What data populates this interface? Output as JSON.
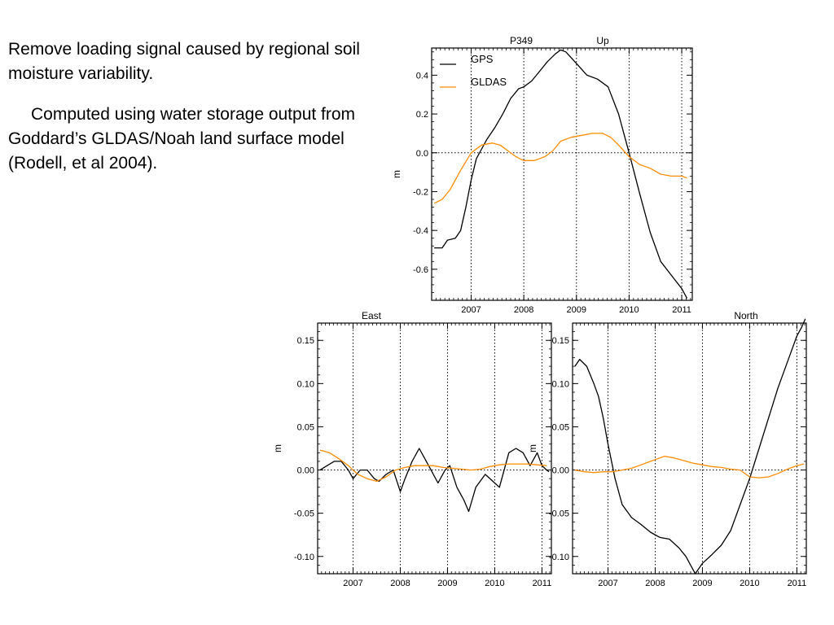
{
  "text": {
    "paragraph1": "Remove loading signal caused by regional soil moisture variability.",
    "paragraph2": "Computed using water storage output from Goddard’s GLDAS/Noah land surface model (Rodell, et al 2004)."
  },
  "colors": {
    "gps": "#000000",
    "gldas": "#ff8c00"
  },
  "chart_data": [
    {
      "type": "line",
      "station": "P349",
      "title": "Up",
      "ylabel": "m",
      "xlim": [
        2006.25,
        2011.2
      ],
      "ylim": [
        -0.76,
        0.54
      ],
      "x_ticks": [
        2007,
        2008,
        2009,
        2010,
        2011
      ],
      "y_ticks": [
        -0.6,
        -0.4,
        -0.2,
        0.0,
        0.2,
        0.4
      ],
      "y_tick_labels": [
        "-0.6",
        "-0.4",
        "-0.2",
        "0.0",
        "0.2",
        "0.4"
      ],
      "legend": [
        "GPS",
        "GLDAS"
      ],
      "legend_position": "top-left",
      "series": [
        {
          "name": "GPS",
          "x": [
            2006.3,
            2006.45,
            2006.55,
            2006.7,
            2006.8,
            2006.9,
            2007.0,
            2007.1,
            2007.2,
            2007.3,
            2007.45,
            2007.6,
            2007.75,
            2007.9,
            2008.0,
            2008.15,
            2008.3,
            2008.45,
            2008.6,
            2008.7,
            2008.8,
            2008.9,
            2009.0,
            2009.2,
            2009.4,
            2009.6,
            2009.8,
            2010.0,
            2010.2,
            2010.4,
            2010.6,
            2010.8,
            2011.0,
            2011.1
          ],
          "y": [
            -0.49,
            -0.49,
            -0.45,
            -0.44,
            -0.4,
            -0.28,
            -0.14,
            -0.03,
            0.02,
            0.07,
            0.13,
            0.2,
            0.28,
            0.33,
            0.34,
            0.37,
            0.42,
            0.47,
            0.51,
            0.53,
            0.52,
            0.49,
            0.46,
            0.4,
            0.38,
            0.34,
            0.2,
            0.0,
            -0.21,
            -0.41,
            -0.56,
            -0.63,
            -0.7,
            -0.75
          ]
        },
        {
          "name": "GLDAS",
          "x": [
            2006.3,
            2006.45,
            2006.6,
            2006.8,
            2007.0,
            2007.2,
            2007.4,
            2007.55,
            2007.7,
            2007.85,
            2008.0,
            2008.2,
            2008.4,
            2008.55,
            2008.7,
            2008.9,
            2009.1,
            2009.3,
            2009.5,
            2009.65,
            2009.8,
            2010.0,
            2010.2,
            2010.4,
            2010.6,
            2010.8,
            2011.0,
            2011.1
          ],
          "y": [
            -0.26,
            -0.24,
            -0.19,
            -0.09,
            0.0,
            0.04,
            0.05,
            0.04,
            0.01,
            -0.02,
            -0.04,
            -0.04,
            -0.02,
            0.01,
            0.06,
            0.08,
            0.09,
            0.1,
            0.1,
            0.08,
            0.04,
            -0.02,
            -0.06,
            -0.08,
            -0.11,
            -0.12,
            -0.12,
            -0.13
          ]
        }
      ]
    },
    {
      "type": "line",
      "title": "East",
      "ylabel": "m",
      "xlim": [
        2006.25,
        2011.2
      ],
      "ylim": [
        -0.12,
        0.17
      ],
      "x_ticks": [
        2007,
        2008,
        2009,
        2010,
        2011
      ],
      "y_ticks": [
        -0.1,
        -0.05,
        0.0,
        0.05,
        0.1,
        0.15
      ],
      "y_tick_labels": [
        "-0.10",
        "-0.05",
        "0.00",
        "0.05",
        "0.10",
        "0.15"
      ],
      "series": [
        {
          "name": "GPS",
          "x": [
            2006.3,
            2006.45,
            2006.6,
            2006.75,
            2006.9,
            2007.0,
            2007.15,
            2007.3,
            2007.45,
            2007.55,
            2007.7,
            2007.85,
            2008.0,
            2008.1,
            2008.25,
            2008.4,
            2008.5,
            2008.65,
            2008.8,
            2008.95,
            2009.05,
            2009.2,
            2009.35,
            2009.45,
            2009.6,
            2009.8,
            2010.0,
            2010.1,
            2010.2,
            2010.3,
            2010.45,
            2010.6,
            2010.75,
            2010.9,
            2011.0,
            2011.1,
            2011.15
          ],
          "y": [
            0.0,
            0.005,
            0.01,
            0.01,
            0.0,
            -0.01,
            0.0,
            0.0,
            -0.01,
            -0.013,
            -0.005,
            0.0,
            -0.025,
            -0.01,
            0.01,
            0.025,
            0.015,
            0.0,
            -0.015,
            0.0,
            0.005,
            -0.02,
            -0.035,
            -0.048,
            -0.02,
            -0.005,
            -0.015,
            -0.02,
            0.0,
            0.02,
            0.025,
            0.02,
            0.005,
            0.02,
            0.005,
            0.0,
            -0.002
          ]
        },
        {
          "name": "GLDAS",
          "x": [
            2006.3,
            2006.5,
            2006.7,
            2006.9,
            2007.1,
            2007.3,
            2007.5,
            2007.7,
            2007.9,
            2008.1,
            2008.3,
            2008.5,
            2008.7,
            2008.9,
            2009.1,
            2009.3,
            2009.5,
            2009.7,
            2009.9,
            2010.1,
            2010.3,
            2010.5,
            2010.7,
            2010.9,
            2011.1
          ],
          "y": [
            0.023,
            0.02,
            0.013,
            0.005,
            -0.005,
            -0.01,
            -0.013,
            -0.008,
            0.0,
            0.003,
            0.005,
            0.005,
            0.005,
            0.003,
            0.002,
            0.001,
            0.0,
            0.001,
            0.004,
            0.006,
            0.007,
            0.007,
            0.007,
            0.006,
            0.005
          ]
        }
      ]
    },
    {
      "type": "line",
      "title": "North",
      "ylabel": "m",
      "xlim": [
        2006.25,
        2011.2
      ],
      "ylim": [
        -0.12,
        0.17
      ],
      "x_ticks": [
        2007,
        2008,
        2009,
        2010,
        2011
      ],
      "y_ticks": [
        -0.1,
        -0.05,
        0.0,
        0.05,
        0.1,
        0.15
      ],
      "y_tick_labels": [
        "-0.10",
        "-0.05",
        "0.00",
        "0.05",
        "0.10",
        "0.15"
      ],
      "series": [
        {
          "name": "GPS",
          "x": [
            2006.3,
            2006.4,
            2006.55,
            2006.7,
            2006.8,
            2006.9,
            2007.0,
            2007.15,
            2007.3,
            2007.5,
            2007.7,
            2007.9,
            2008.1,
            2008.3,
            2008.5,
            2008.65,
            2008.75,
            2008.85,
            2009.0,
            2009.2,
            2009.4,
            2009.6,
            2009.8,
            2010.0,
            2010.2,
            2010.4,
            2010.6,
            2010.8,
            2011.0,
            2011.1,
            2011.18
          ],
          "y": [
            0.12,
            0.128,
            0.12,
            0.1,
            0.085,
            0.06,
            0.03,
            -0.01,
            -0.04,
            -0.055,
            -0.063,
            -0.072,
            -0.078,
            -0.08,
            -0.09,
            -0.1,
            -0.11,
            -0.12,
            -0.108,
            -0.098,
            -0.087,
            -0.07,
            -0.04,
            -0.01,
            0.025,
            0.06,
            0.095,
            0.125,
            0.155,
            0.165,
            0.175
          ]
        },
        {
          "name": "GLDAS",
          "x": [
            2006.3,
            2006.5,
            2006.7,
            2006.9,
            2007.1,
            2007.3,
            2007.5,
            2007.7,
            2007.9,
            2008.1,
            2008.2,
            2008.4,
            2008.6,
            2008.8,
            2009.0,
            2009.2,
            2009.4,
            2009.6,
            2009.8,
            2009.9,
            2010.0,
            2010.2,
            2010.4,
            2010.6,
            2010.8,
            2011.0,
            2011.15
          ],
          "y": [
            0.0,
            -0.002,
            -0.003,
            -0.002,
            -0.002,
            0.0,
            0.002,
            0.006,
            0.01,
            0.014,
            0.016,
            0.014,
            0.011,
            0.008,
            0.006,
            0.004,
            0.003,
            0.001,
            0.0,
            -0.004,
            -0.008,
            -0.009,
            -0.008,
            -0.004,
            0.001,
            0.005,
            0.007
          ]
        }
      ]
    }
  ]
}
